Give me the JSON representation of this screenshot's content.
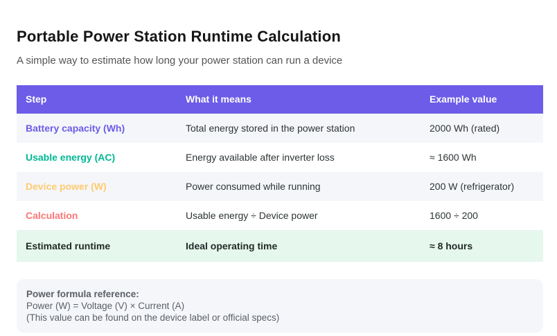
{
  "page": {
    "title": "Portable Power Station Runtime Calculation",
    "subtitle": "A simple way to estimate how long your power station can run a device"
  },
  "colors": {
    "header_bg": "#6c5ce7",
    "header_text": "#ffffff",
    "stripe_bg": "#f5f6fa",
    "white_bg": "#ffffff",
    "total_row_bg": "#e6f7ee"
  },
  "table": {
    "headers": [
      "Step",
      "What it means",
      "Example value"
    ],
    "rows": [
      {
        "step": "Battery capacity (Wh)",
        "meaning": "Total energy stored in the power station",
        "example": "2000 Wh (rated)",
        "label_color": "#6c5ce7",
        "bg": "#f5f6fa"
      },
      {
        "step": "Usable energy (AC)",
        "meaning": "Energy available after inverter loss",
        "example": "≈ 1600 Wh",
        "label_color": "#00b894",
        "bg": "#ffffff"
      },
      {
        "step": "Device power (W)",
        "meaning": "Power consumed while running",
        "example": "200 W (refrigerator)",
        "label_color": "#fdcb6e",
        "bg": "#f5f6fa"
      },
      {
        "step": "Calculation",
        "meaning": "Usable energy ÷ Device power",
        "example": "1600 ÷ 200",
        "label_color": "#ff7675",
        "bg": "#ffffff"
      },
      {
        "step": "Estimated runtime",
        "meaning": "Ideal operating time",
        "example": "≈ 8 hours",
        "label_color": "#222b27",
        "bg": "#e6f7ee"
      }
    ]
  },
  "footer": {
    "reference_title": "Power formula reference:",
    "formula_line": "Power (W) = Voltage (V) × Current (A)",
    "note_line": "(This value can be found on the device label or official specs)"
  }
}
